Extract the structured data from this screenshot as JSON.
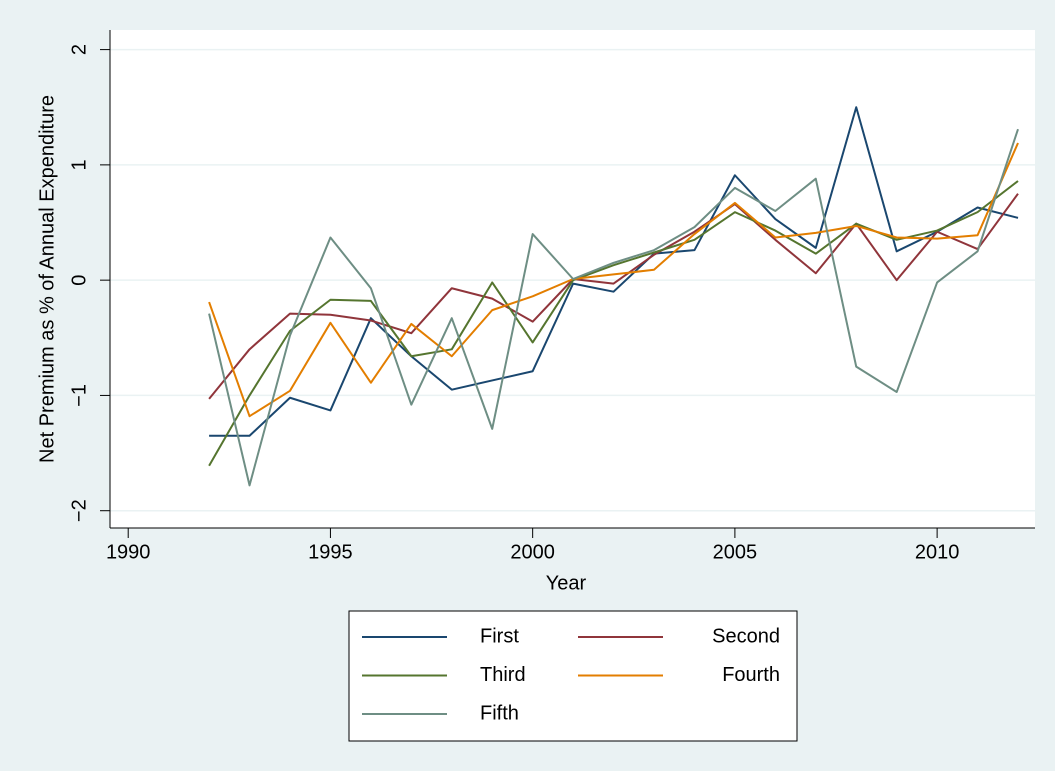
{
  "chart_data": {
    "type": "line",
    "x_label": "Year",
    "y_label": "Net Premium as % of Annual Expenditure",
    "x": [
      1992,
      1993,
      1994,
      1995,
      1996,
      1997,
      1998,
      1999,
      2000,
      2001,
      2002,
      2003,
      2004,
      2005,
      2006,
      2007,
      2008,
      2009,
      2010,
      2011,
      2012
    ],
    "series": [
      {
        "name": "First",
        "color": "#1a476f",
        "values": [
          -1.35,
          -1.35,
          -1.02,
          -1.13,
          -0.33,
          -0.66,
          -0.95,
          -0.87,
          -0.79,
          -0.03,
          -0.1,
          0.23,
          0.26,
          0.91,
          0.53,
          0.28,
          1.5,
          0.25,
          0.42,
          0.63,
          0.54
        ]
      },
      {
        "name": "Second",
        "color": "#90353b",
        "values": [
          -1.03,
          -0.6,
          -0.29,
          -0.3,
          -0.35,
          -0.46,
          -0.07,
          -0.16,
          -0.36,
          0.01,
          -0.03,
          0.22,
          0.42,
          0.66,
          0.35,
          0.06,
          0.49,
          0.0,
          0.42,
          0.27,
          0.75
        ]
      },
      {
        "name": "Third",
        "color": "#55752f",
        "values": [
          -1.61,
          -1.0,
          -0.44,
          -0.17,
          -0.18,
          -0.66,
          -0.6,
          -0.02,
          -0.54,
          0.0,
          0.13,
          0.24,
          0.35,
          0.59,
          0.43,
          0.23,
          0.49,
          0.35,
          0.43,
          0.59,
          0.86
        ]
      },
      {
        "name": "Fourth",
        "color": "#e37e00",
        "values": [
          -0.19,
          -1.18,
          -0.96,
          -0.37,
          -0.89,
          -0.38,
          -0.66,
          -0.26,
          -0.14,
          0.01,
          0.05,
          0.09,
          0.4,
          0.67,
          0.37,
          0.41,
          0.47,
          0.37,
          0.36,
          0.39,
          1.19
        ]
      },
      {
        "name": "Fifth",
        "color": "#6e8e84",
        "values": [
          -0.29,
          -1.78,
          -0.48,
          0.37,
          -0.07,
          -1.08,
          -0.33,
          -1.29,
          0.4,
          0.01,
          0.15,
          0.26,
          0.46,
          0.8,
          0.6,
          0.88,
          -0.75,
          -0.97,
          -0.02,
          0.25,
          1.31
        ]
      }
    ],
    "xlim": [
      1989.55,
      2012.42
    ],
    "xticks": [
      1990,
      1995,
      2000,
      2005,
      2010
    ],
    "ylim": [
      -2.15,
      2.17
    ],
    "yticks": [
      {
        "value": -2,
        "label": "−2"
      },
      {
        "value": -1,
        "label": "−1"
      },
      0,
      1,
      2
    ],
    "grid": true,
    "legend": "bottom"
  }
}
